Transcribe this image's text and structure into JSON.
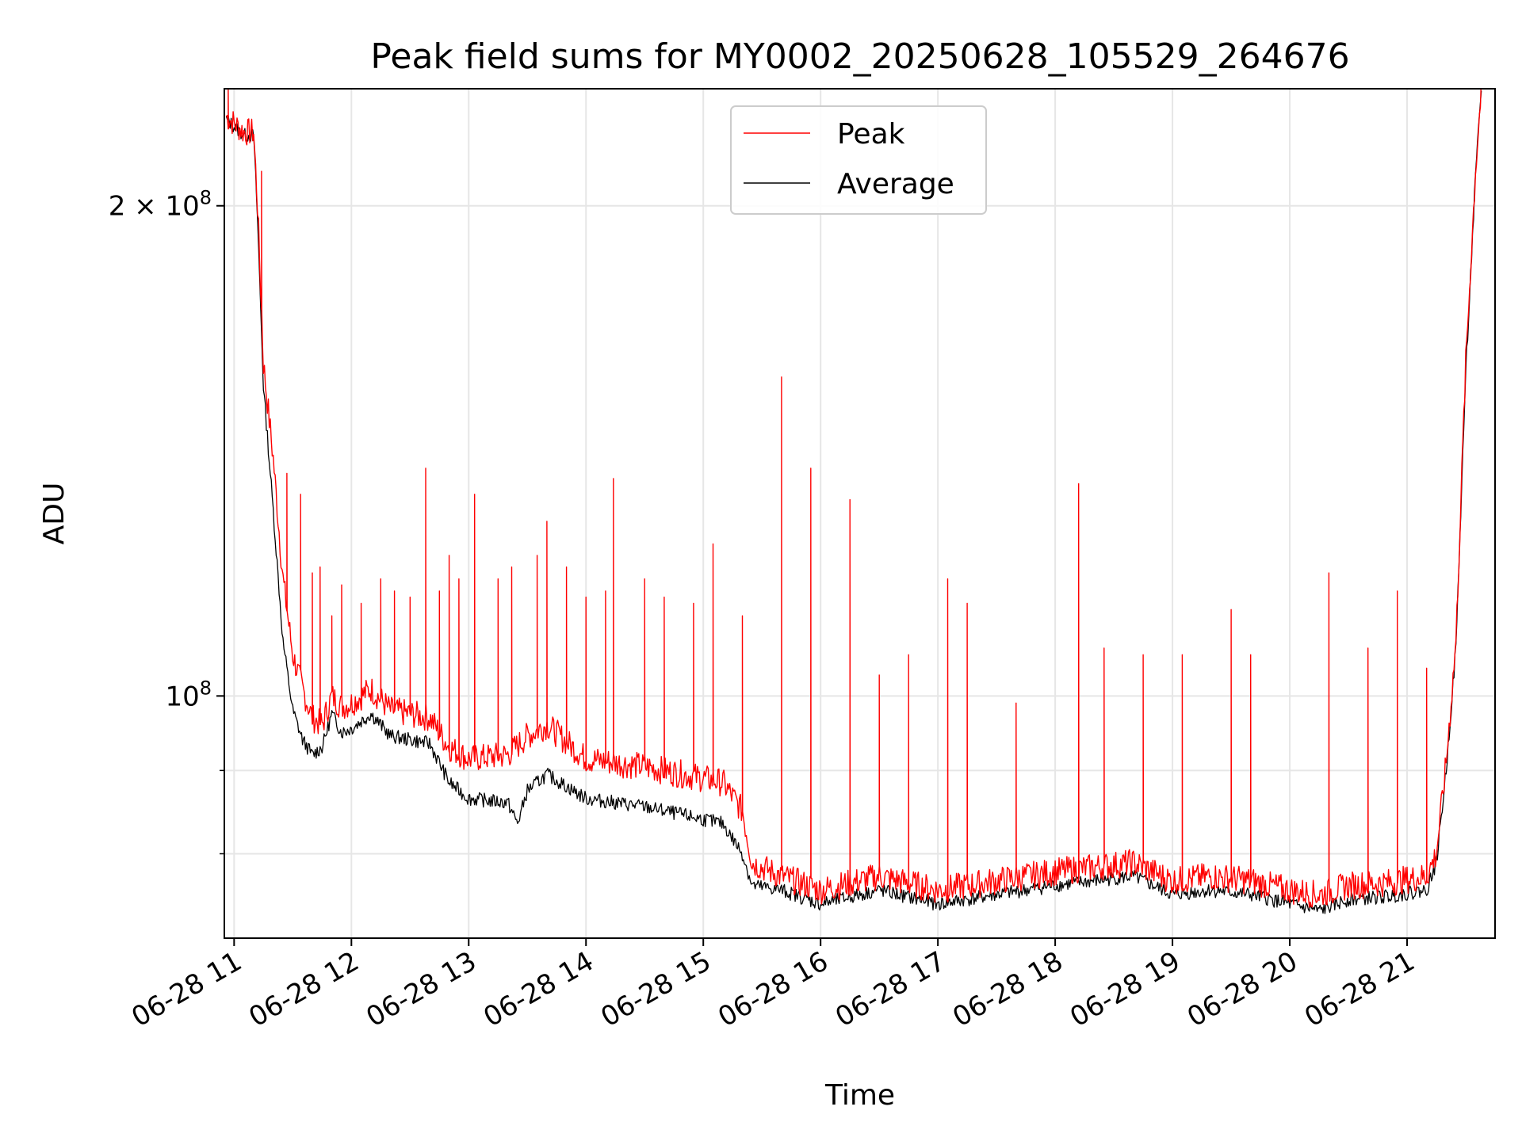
{
  "chart_data": {
    "type": "line",
    "title": "Peak field sums for MY0002_20250628_105529_264676",
    "xlabel": "Time",
    "ylabel": "ADU",
    "x_start": "06-28 10:55",
    "x_end": "06-28 21:45",
    "xlim": [
      "06-28 10:55",
      "06-28 21:45"
    ],
    "xticks": [
      "06-28 11",
      "06-28 12",
      "06-28 13",
      "06-28 14",
      "06-28 15",
      "06-28 16",
      "06-28 17",
      "06-28 18",
      "06-28 19",
      "06-28 20",
      "06-28 21"
    ],
    "yscale": "log",
    "ylim": [
      71000000,
      236000000
    ],
    "yticks_major": [
      {
        "value": 100000000,
        "base": "10",
        "exp": "8",
        "coef": ""
      },
      {
        "value": 200000000,
        "base": "10",
        "exp": "8",
        "coef": "2 × "
      }
    ],
    "yticks_minor": [
      80000000,
      90000000
    ],
    "grid": true,
    "legend_position": "upper center",
    "series": [
      {
        "name": "Peak",
        "color": "#ff0000",
        "baseline": [
          [
            "06-28 10:56",
            227000000
          ],
          [
            "06-28 11:05",
            222000000
          ],
          [
            "06-28 11:10",
            222000000
          ],
          [
            "06-28 11:12",
            200000000
          ],
          [
            "06-28 11:15",
            160000000
          ],
          [
            "06-28 11:20",
            140000000
          ],
          [
            "06-28 11:25",
            118000000
          ],
          [
            "06-28 11:30",
            106000000
          ],
          [
            "06-28 11:35",
            101000000
          ],
          [
            "06-28 11:40",
            97000000
          ],
          [
            "06-28 11:45",
            96000000
          ],
          [
            "06-28 11:50",
            100000000
          ],
          [
            "06-28 11:55",
            98500000
          ],
          [
            "06-28 12:00",
            99000000
          ],
          [
            "06-28 12:10",
            101000000
          ],
          [
            "06-28 12:20",
            98000000
          ],
          [
            "06-28 12:30",
            97500000
          ],
          [
            "06-28 12:40",
            97000000
          ],
          [
            "06-28 12:50",
            93000000
          ],
          [
            "06-28 13:00",
            91500000
          ],
          [
            "06-28 13:20",
            92000000
          ],
          [
            "06-28 13:30",
            94500000
          ],
          [
            "06-28 13:40",
            96000000
          ],
          [
            "06-28 14:00",
            91500000
          ],
          [
            "06-28 14:30",
            90500000
          ],
          [
            "06-28 15:00",
            89000000
          ],
          [
            "06-28 15:10",
            88500000
          ],
          [
            "06-28 15:20",
            85000000
          ],
          [
            "06-28 15:25",
            79000000
          ],
          [
            "06-28 15:40",
            77500000
          ],
          [
            "06-28 16:00",
            76000000
          ],
          [
            "06-28 16:30",
            77500000
          ],
          [
            "06-28 16:50",
            76500000
          ],
          [
            "06-28 17:00",
            76000000
          ],
          [
            "06-28 17:30",
            77000000
          ],
          [
            "06-28 18:00",
            78000000
          ],
          [
            "06-28 18:20",
            78500000
          ],
          [
            "06-28 18:40",
            79000000
          ],
          [
            "06-28 19:00",
            77000000
          ],
          [
            "06-28 19:20",
            77500000
          ],
          [
            "06-28 19:40",
            77000000
          ],
          [
            "06-28 20:00",
            76000000
          ],
          [
            "06-28 20:15",
            75500000
          ],
          [
            "06-28 20:30",
            76500000
          ],
          [
            "06-28 20:50",
            76800000
          ],
          [
            "06-28 21:10",
            77500000
          ],
          [
            "06-28 21:15",
            80000000
          ],
          [
            "06-28 21:20",
            91000000
          ],
          [
            "06-28 21:25",
            108000000
          ],
          [
            "06-28 21:30",
            160000000
          ],
          [
            "06-28 21:35",
            210000000
          ],
          [
            "06-28 21:38",
            236000000
          ]
        ],
        "spikes": [
          [
            "06-28 10:57",
            236000000
          ],
          [
            "06-28 11:14",
            210000000
          ],
          [
            "06-28 11:27",
            137000000
          ],
          [
            "06-28 11:34",
            133000000
          ],
          [
            "06-28 11:40",
            119000000
          ],
          [
            "06-28 11:44",
            120000000
          ],
          [
            "06-28 11:50",
            112000000
          ],
          [
            "06-28 11:55",
            117000000
          ],
          [
            "06-28 12:05",
            114000000
          ],
          [
            "06-28 12:15",
            118000000
          ],
          [
            "06-28 12:22",
            116000000
          ],
          [
            "06-28 12:30",
            115000000
          ],
          [
            "06-28 12:38",
            138000000
          ],
          [
            "06-28 12:45",
            116000000
          ],
          [
            "06-28 12:50",
            122000000
          ],
          [
            "06-28 12:55",
            118000000
          ],
          [
            "06-28 13:03",
            133000000
          ],
          [
            "06-28 13:15",
            118000000
          ],
          [
            "06-28 13:22",
            120000000
          ],
          [
            "06-28 13:35",
            122000000
          ],
          [
            "06-28 13:40",
            128000000
          ],
          [
            "06-28 13:50",
            120000000
          ],
          [
            "06-28 14:00",
            115000000
          ],
          [
            "06-28 14:10",
            116000000
          ],
          [
            "06-28 14:14",
            136000000
          ],
          [
            "06-28 14:30",
            118000000
          ],
          [
            "06-28 14:40",
            115000000
          ],
          [
            "06-28 14:55",
            114000000
          ],
          [
            "06-28 15:05",
            124000000
          ],
          [
            "06-28 15:20",
            112000000
          ],
          [
            "06-28 15:40",
            157000000
          ],
          [
            "06-28 15:55",
            138000000
          ],
          [
            "06-28 16:15",
            132000000
          ],
          [
            "06-28 16:30",
            103000000
          ],
          [
            "06-28 16:45",
            106000000
          ],
          [
            "06-28 17:05",
            118000000
          ],
          [
            "06-28 17:15",
            114000000
          ],
          [
            "06-28 17:40",
            99000000
          ],
          [
            "06-28 18:12",
            135000000
          ],
          [
            "06-28 18:25",
            107000000
          ],
          [
            "06-28 18:45",
            106000000
          ],
          [
            "06-28 19:05",
            106000000
          ],
          [
            "06-28 19:30",
            113000000
          ],
          [
            "06-28 19:40",
            106000000
          ],
          [
            "06-28 20:20",
            119000000
          ],
          [
            "06-28 20:40",
            107000000
          ],
          [
            "06-28 20:55",
            116000000
          ],
          [
            "06-28 21:10",
            104000000
          ]
        ]
      },
      {
        "name": "Average",
        "color": "#000000",
        "baseline": [
          [
            "06-28 10:56",
            226000000
          ],
          [
            "06-28 11:05",
            221000000
          ],
          [
            "06-28 11:10",
            221000000
          ],
          [
            "06-28 11:12",
            196000000
          ],
          [
            "06-28 11:15",
            155000000
          ],
          [
            "06-28 11:20",
            130000000
          ],
          [
            "06-28 11:25",
            108000000
          ],
          [
            "06-28 11:30",
            98000000
          ],
          [
            "06-28 11:35",
            94000000
          ],
          [
            "06-28 11:40",
            92000000
          ],
          [
            "06-28 11:45",
            93000000
          ],
          [
            "06-28 11:50",
            97500000
          ],
          [
            "06-28 11:55",
            95000000
          ],
          [
            "06-28 12:00",
            95500000
          ],
          [
            "06-28 12:10",
            97500000
          ],
          [
            "06-28 12:20",
            94500000
          ],
          [
            "06-28 12:30",
            94000000
          ],
          [
            "06-28 12:40",
            93500000
          ],
          [
            "06-28 12:50",
            88500000
          ],
          [
            "06-28 13:00",
            86500000
          ],
          [
            "06-28 13:20",
            86000000
          ],
          [
            "06-28 13:25",
            83500000
          ],
          [
            "06-28 13:30",
            87500000
          ],
          [
            "06-28 13:40",
            89500000
          ],
          [
            "06-28 14:00",
            86500000
          ],
          [
            "06-28 14:30",
            85500000
          ],
          [
            "06-28 15:00",
            84000000
          ],
          [
            "06-28 15:10",
            83500000
          ],
          [
            "06-28 15:20",
            80000000
          ],
          [
            "06-28 15:25",
            76500000
          ],
          [
            "06-28 15:40",
            76000000
          ],
          [
            "06-28 16:00",
            74500000
          ],
          [
            "06-28 16:30",
            76000000
          ],
          [
            "06-28 16:50",
            75000000
          ],
          [
            "06-28 17:00",
            74500000
          ],
          [
            "06-28 17:30",
            75500000
          ],
          [
            "06-28 18:00",
            76500000
          ],
          [
            "06-28 18:20",
            77000000
          ],
          [
            "06-28 18:40",
            77500000
          ],
          [
            "06-28 19:00",
            75500000
          ],
          [
            "06-28 19:20",
            76000000
          ],
          [
            "06-28 19:40",
            75500000
          ],
          [
            "06-28 20:00",
            74500000
          ],
          [
            "06-28 20:15",
            73800000
          ],
          [
            "06-28 20:30",
            75000000
          ],
          [
            "06-28 20:50",
            75300000
          ],
          [
            "06-28 21:10",
            76000000
          ],
          [
            "06-28 21:15",
            79000000
          ],
          [
            "06-28 21:20",
            90000000
          ],
          [
            "06-28 21:25",
            107000000
          ],
          [
            "06-28 21:30",
            158000000
          ],
          [
            "06-28 21:35",
            208000000
          ],
          [
            "06-28 21:38",
            236000000
          ]
        ]
      }
    ]
  }
}
